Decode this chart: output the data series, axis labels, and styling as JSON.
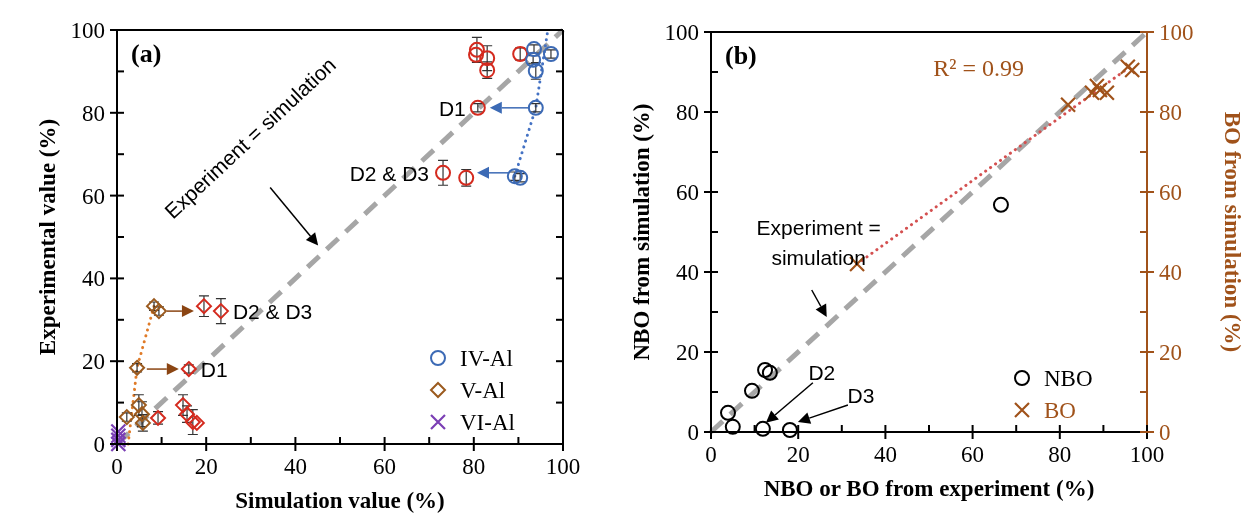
{
  "chart_data": [
    {
      "type": "scatter",
      "title": "(a)",
      "xlabel": "Simulation value (%)",
      "ylabel": "Experimental value (%)",
      "xlim": [
        0,
        100
      ],
      "ylim": [
        0,
        100
      ],
      "xticks": [
        0,
        {
          "value": 10,
          "label": null
        },
        20,
        {
          "value": 30,
          "label": null
        },
        40,
        {
          "value": 50,
          "label": null
        },
        60,
        {
          "value": 70,
          "label": null
        },
        80,
        {
          "value": 90,
          "label": null
        },
        100
      ],
      "yticks": [
        0,
        {
          "value": 10,
          "label": null
        },
        20,
        {
          "value": 30,
          "label": null
        },
        40,
        {
          "value": 50,
          "label": null
        },
        60,
        {
          "value": 70,
          "label": null
        },
        80,
        {
          "value": 90,
          "label": null
        },
        100
      ],
      "legend": "bottom right",
      "annotations": [
        {
          "text": "Experiment = simulation",
          "x": 46,
          "y": 47
        },
        {
          "text": "D1",
          "x": 80.9,
          "y": 81.2
        },
        {
          "text": "D2 & D3",
          "x": 73.1,
          "y": 65.5
        },
        {
          "text": "D1",
          "x": 16.1,
          "y": 18.1
        },
        {
          "text": "D2 & D3",
          "x": 23.3,
          "y": 32.1
        }
      ],
      "series": [
        {
          "type": "line",
          "color": "#a6a6a6",
          "line_style": "dashed",
          "x": [
            0,
            100
          ],
          "values": [
            0,
            100
          ]
        },
        {
          "type": "line",
          "color": "#4472c4",
          "line_style": "dotted",
          "x": [
            89.2,
            93.9,
            96.6
          ],
          "values": [
            64.7,
            81.2,
            100
          ]
        },
        {
          "type": "line",
          "color": "#e07b28",
          "line_style": "dotted",
          "x": [
            2.5,
            4.5,
            8.3
          ],
          "values": [
            0,
            18.4,
            33.3
          ]
        },
        {
          "type": "scatter",
          "color": "#d42a1e",
          "marker": "circle",
          "x": [
            80.7,
            80.5,
            83,
            83,
            90.4,
            80.9,
            73.1,
            78.3
          ],
          "values": [
            95.2,
            94,
            93.2,
            90.3,
            94.2,
            81.2,
            65.5,
            64.3
          ],
          "errors": [
            3,
            null,
            3,
            2,
            1.5,
            1,
            3,
            2
          ]
        },
        {
          "type": "scatter",
          "color": "#d42a1e",
          "marker": "diamond",
          "x": [
            19.5,
            23.3,
            16.1,
            14.8,
            15.7,
            17,
            17.9,
            9.2
          ],
          "values": [
            33.3,
            32.1,
            18.1,
            9.4,
            7.2,
            5.3,
            5.1,
            6.3
          ],
          "errors": [
            2.5,
            3,
            1,
            2.5,
            2,
            3,
            null,
            1.5
          ]
        },
        {
          "type": "scatter",
          "name": "IV-Al",
          "color": "#3c6ab5",
          "marker": "circle",
          "x": [
            93.5,
            93.3,
            97.3,
            93.9,
            93.9,
            89.2,
            90.4
          ],
          "values": [
            95.4,
            92.8,
            94.2,
            90.1,
            81.2,
            64.7,
            64.3
          ],
          "errors": [
            1,
            1,
            1,
            2,
            1,
            1,
            1
          ]
        },
        {
          "type": "scatter",
          "name": "V-Al",
          "color": "#9b5a1e",
          "marker": "diamond",
          "x": [
            8.3,
            9.4,
            4.5,
            4.9,
            2.2,
            5.6,
            5.8
          ],
          "values": [
            33.3,
            32.1,
            18.4,
            9.4,
            6.5,
            7.2,
            5.1
          ],
          "errors": [
            1,
            1,
            1,
            2.5,
            1,
            3,
            2
          ]
        },
        {
          "type": "scatter",
          "name": "VI-Al",
          "color": "#7b3fb5",
          "marker": "cross",
          "x": [
            0.3,
            0.3,
            0.3,
            0.3
          ],
          "values": [
            0,
            1,
            2,
            3
          ]
        }
      ]
    },
    {
      "type": "scatter",
      "title": "(b)",
      "xlabel": "NBO or BO from experiment (%)",
      "ylabel": "NBO from simulation (%)",
      "y2label": "BO from simulation (%)",
      "xlim": [
        0,
        100
      ],
      "ylim": [
        0,
        100
      ],
      "y2lim": [
        0,
        100
      ],
      "xticks": [
        0,
        {
          "value": 10,
          "label": null
        },
        20,
        {
          "value": 30,
          "label": null
        },
        40,
        {
          "value": 50,
          "label": null
        },
        60,
        {
          "value": 70,
          "label": null
        },
        80,
        {
          "value": 90,
          "label": null
        },
        100
      ],
      "yticks": [
        0,
        {
          "value": 10,
          "label": null
        },
        20,
        {
          "value": 30,
          "label": null
        },
        40,
        {
          "value": 50,
          "label": null
        },
        60,
        {
          "value": 70,
          "label": null
        },
        80,
        {
          "value": 90,
          "label": null
        },
        100
      ],
      "y2ticks": [
        0,
        {
          "value": 10,
          "label": null
        },
        20,
        {
          "value": 30,
          "label": null
        },
        40,
        {
          "value": 50,
          "label": null
        },
        60,
        {
          "value": 70,
          "label": null
        },
        80,
        {
          "value": 90,
          "label": null
        },
        100
      ],
      "legend": "bottom right",
      "annotations": [
        {
          "text": "Experiment = simulation",
          "x": 27,
          "y": 28
        },
        "D2",
        {
          "text": "D3",
          "x": 18.1,
          "y": 0.5
        },
        "R² = 0.99"
      ],
      "series": [
        {
          "type": "line",
          "color": "#a6a6a6",
          "line_style": "dashed",
          "x": [
            0,
            100
          ],
          "values": [
            0,
            100
          ]
        },
        {
          "type": "line",
          "color": "#d45050",
          "line_style": "dotted",
          "axis": "y2",
          "x": [
            33.5,
            97
          ],
          "values": [
            42,
            92
          ]
        },
        {
          "type": "scatter",
          "name": "NBO",
          "color": "#000000",
          "marker": "circle",
          "x": [
            12.4,
            13.5,
            9.4,
            3.9,
            5,
            11.9,
            18.1,
            66.5
          ],
          "values": [
            15.5,
            14.8,
            10.3,
            4.8,
            1.3,
            0.8,
            0.5,
            56.8
          ]
        },
        {
          "type": "scatter",
          "name": "BO",
          "color": "#a0521a",
          "marker": "cross",
          "axis": "y2",
          "x": [
            33.5,
            81.9,
            88.5,
            87.4,
            89.2,
            90.8,
            96.6,
            95.6
          ],
          "values": [
            42,
            81.8,
            86.5,
            84.8,
            85.5,
            84.8,
            90.5,
            91.3
          ]
        }
      ]
    }
  ]
}
